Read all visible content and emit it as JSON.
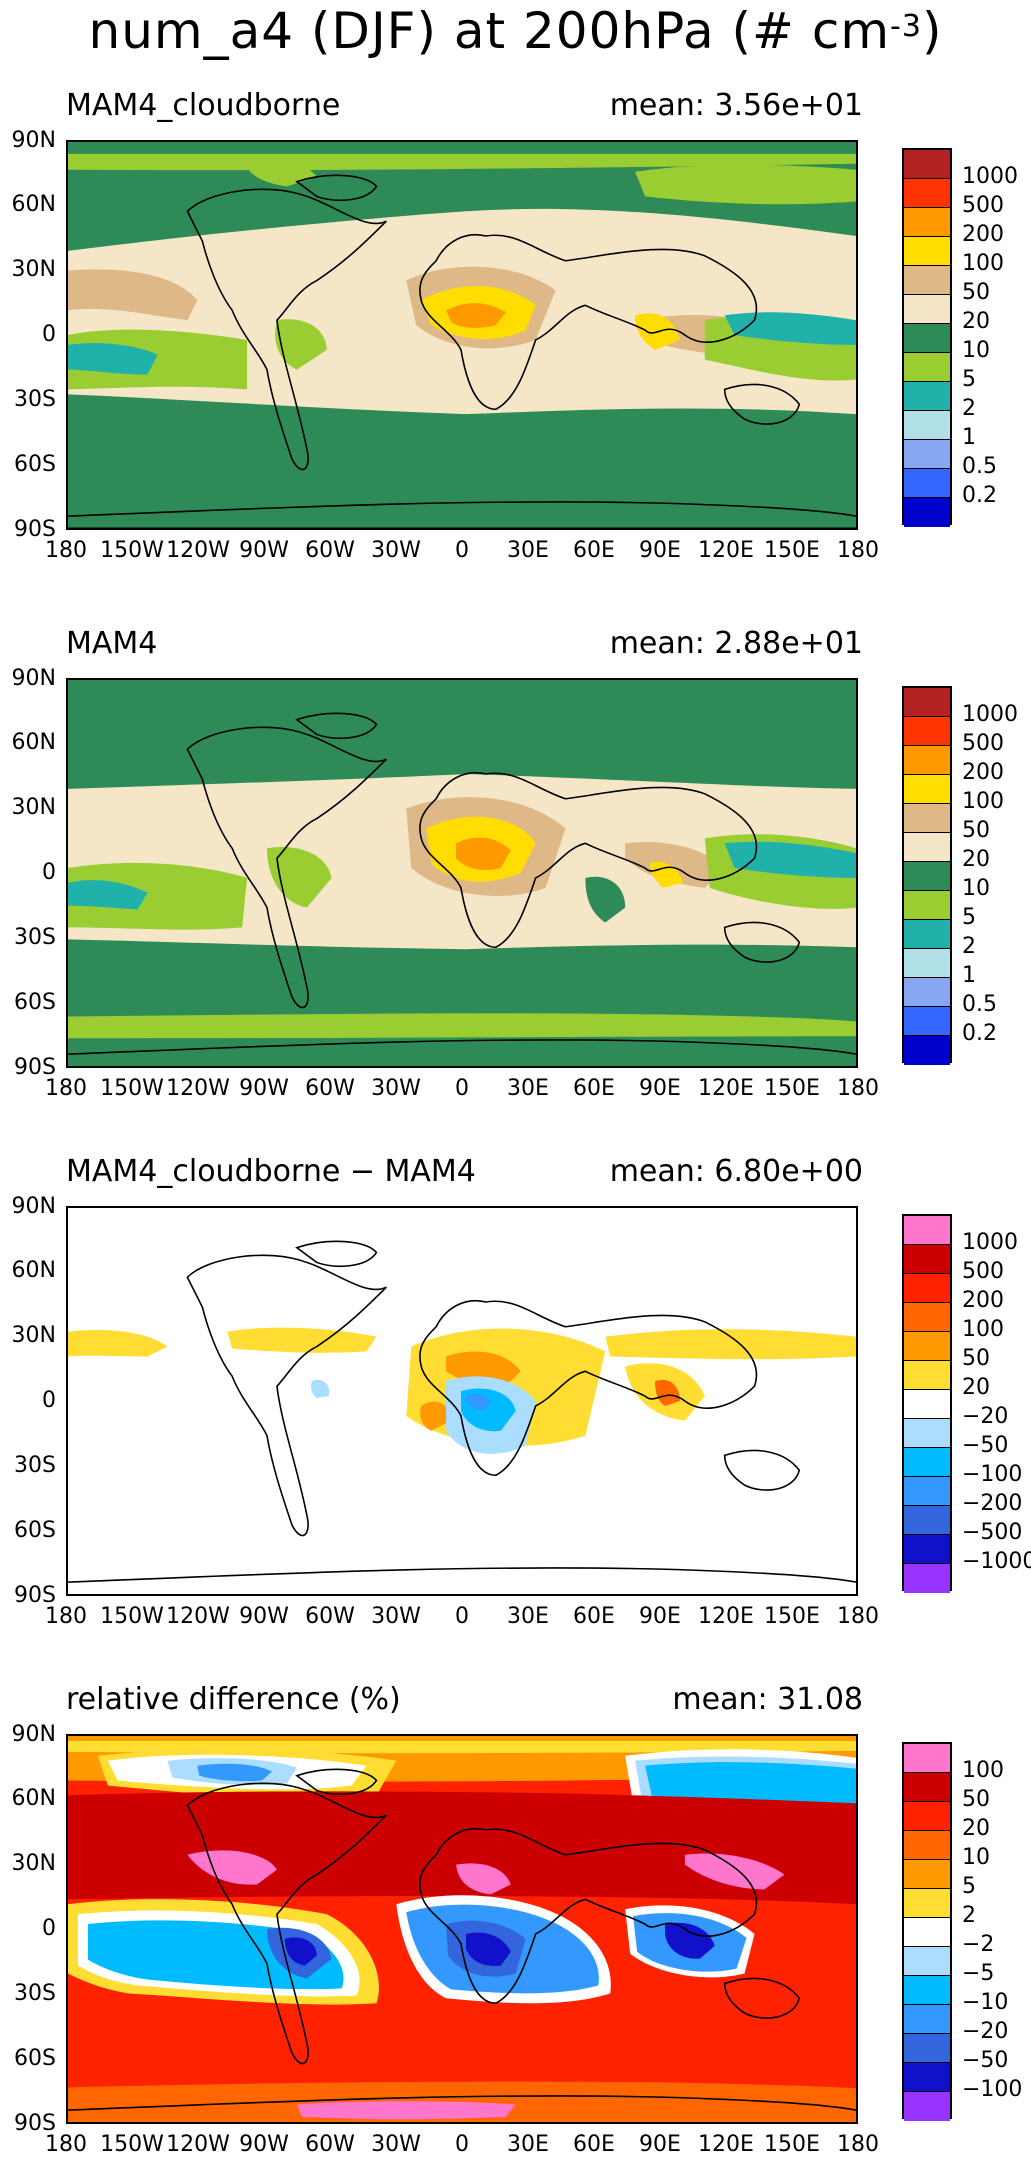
{
  "title": {
    "main": "num_a4 (DJF) at 200hPa (# cm",
    "unit_exp": "-3",
    "close": ")"
  },
  "axes": {
    "y_labels": [
      "90N",
      "60N",
      "30N",
      "0",
      "30S",
      "60S",
      "90S"
    ],
    "x_labels": [
      "180",
      "150W",
      "120W",
      "90W",
      "60W",
      "30W",
      "0",
      "30E",
      "60E",
      "90E",
      "120E",
      "150E",
      "180"
    ]
  },
  "panels": [
    {
      "name": "MAM4_cloudborne",
      "mean": "mean: 3.56e+01",
      "colorbar": {
        "colors": [
          "#b22222",
          "#ff3300",
          "#ff9900",
          "#ffdd00",
          "#deb887",
          "#f5e6c8",
          "#2e8b57",
          "#9acd32",
          "#20b2aa",
          "#b0e0e6",
          "#87a8f0",
          "#3366ff",
          "#0000cd"
        ],
        "labels": [
          "1000",
          "500",
          "200",
          "100",
          "50",
          "20",
          "10",
          "5",
          "2",
          "1",
          "0.5",
          "0.2"
        ]
      }
    },
    {
      "name": "MAM4",
      "mean": "mean: 2.88e+01",
      "colorbar": {
        "colors": [
          "#b22222",
          "#ff3300",
          "#ff9900",
          "#ffdd00",
          "#deb887",
          "#f5e6c8",
          "#2e8b57",
          "#9acd32",
          "#20b2aa",
          "#b0e0e6",
          "#87a8f0",
          "#3366ff",
          "#0000cd"
        ],
        "labels": [
          "1000",
          "500",
          "200",
          "100",
          "50",
          "20",
          "10",
          "5",
          "2",
          "1",
          "0.5",
          "0.2"
        ]
      }
    },
    {
      "name": "MAM4_cloudborne − MAM4",
      "mean": "mean: 6.80e+00",
      "colorbar": {
        "colors": [
          "#ff77cc",
          "#cc0000",
          "#ff2200",
          "#ff6600",
          "#ff9900",
          "#ffdd33",
          "#ffffff",
          "#aaddff",
          "#00bbff",
          "#3399ff",
          "#3366dd",
          "#1111cc",
          "#9933ff"
        ],
        "labels": [
          "1000",
          "500",
          "200",
          "100",
          "50",
          "20",
          "−20",
          "−50",
          "−100",
          "−200",
          "−500",
          "−1000"
        ]
      }
    },
    {
      "name": "relative difference (%)",
      "mean": "mean: 31.08",
      "colorbar": {
        "colors": [
          "#ff77cc",
          "#cc0000",
          "#ff2200",
          "#ff6600",
          "#ff9900",
          "#ffdd33",
          "#ffffff",
          "#aaddff",
          "#00bbff",
          "#3399ff",
          "#3366dd",
          "#1111cc",
          "#9933ff"
        ],
        "labels": [
          "100",
          "50",
          "20",
          "10",
          "5",
          "2",
          "−2",
          "−5",
          "−10",
          "−20",
          "−50",
          "−100"
        ]
      }
    }
  ]
}
